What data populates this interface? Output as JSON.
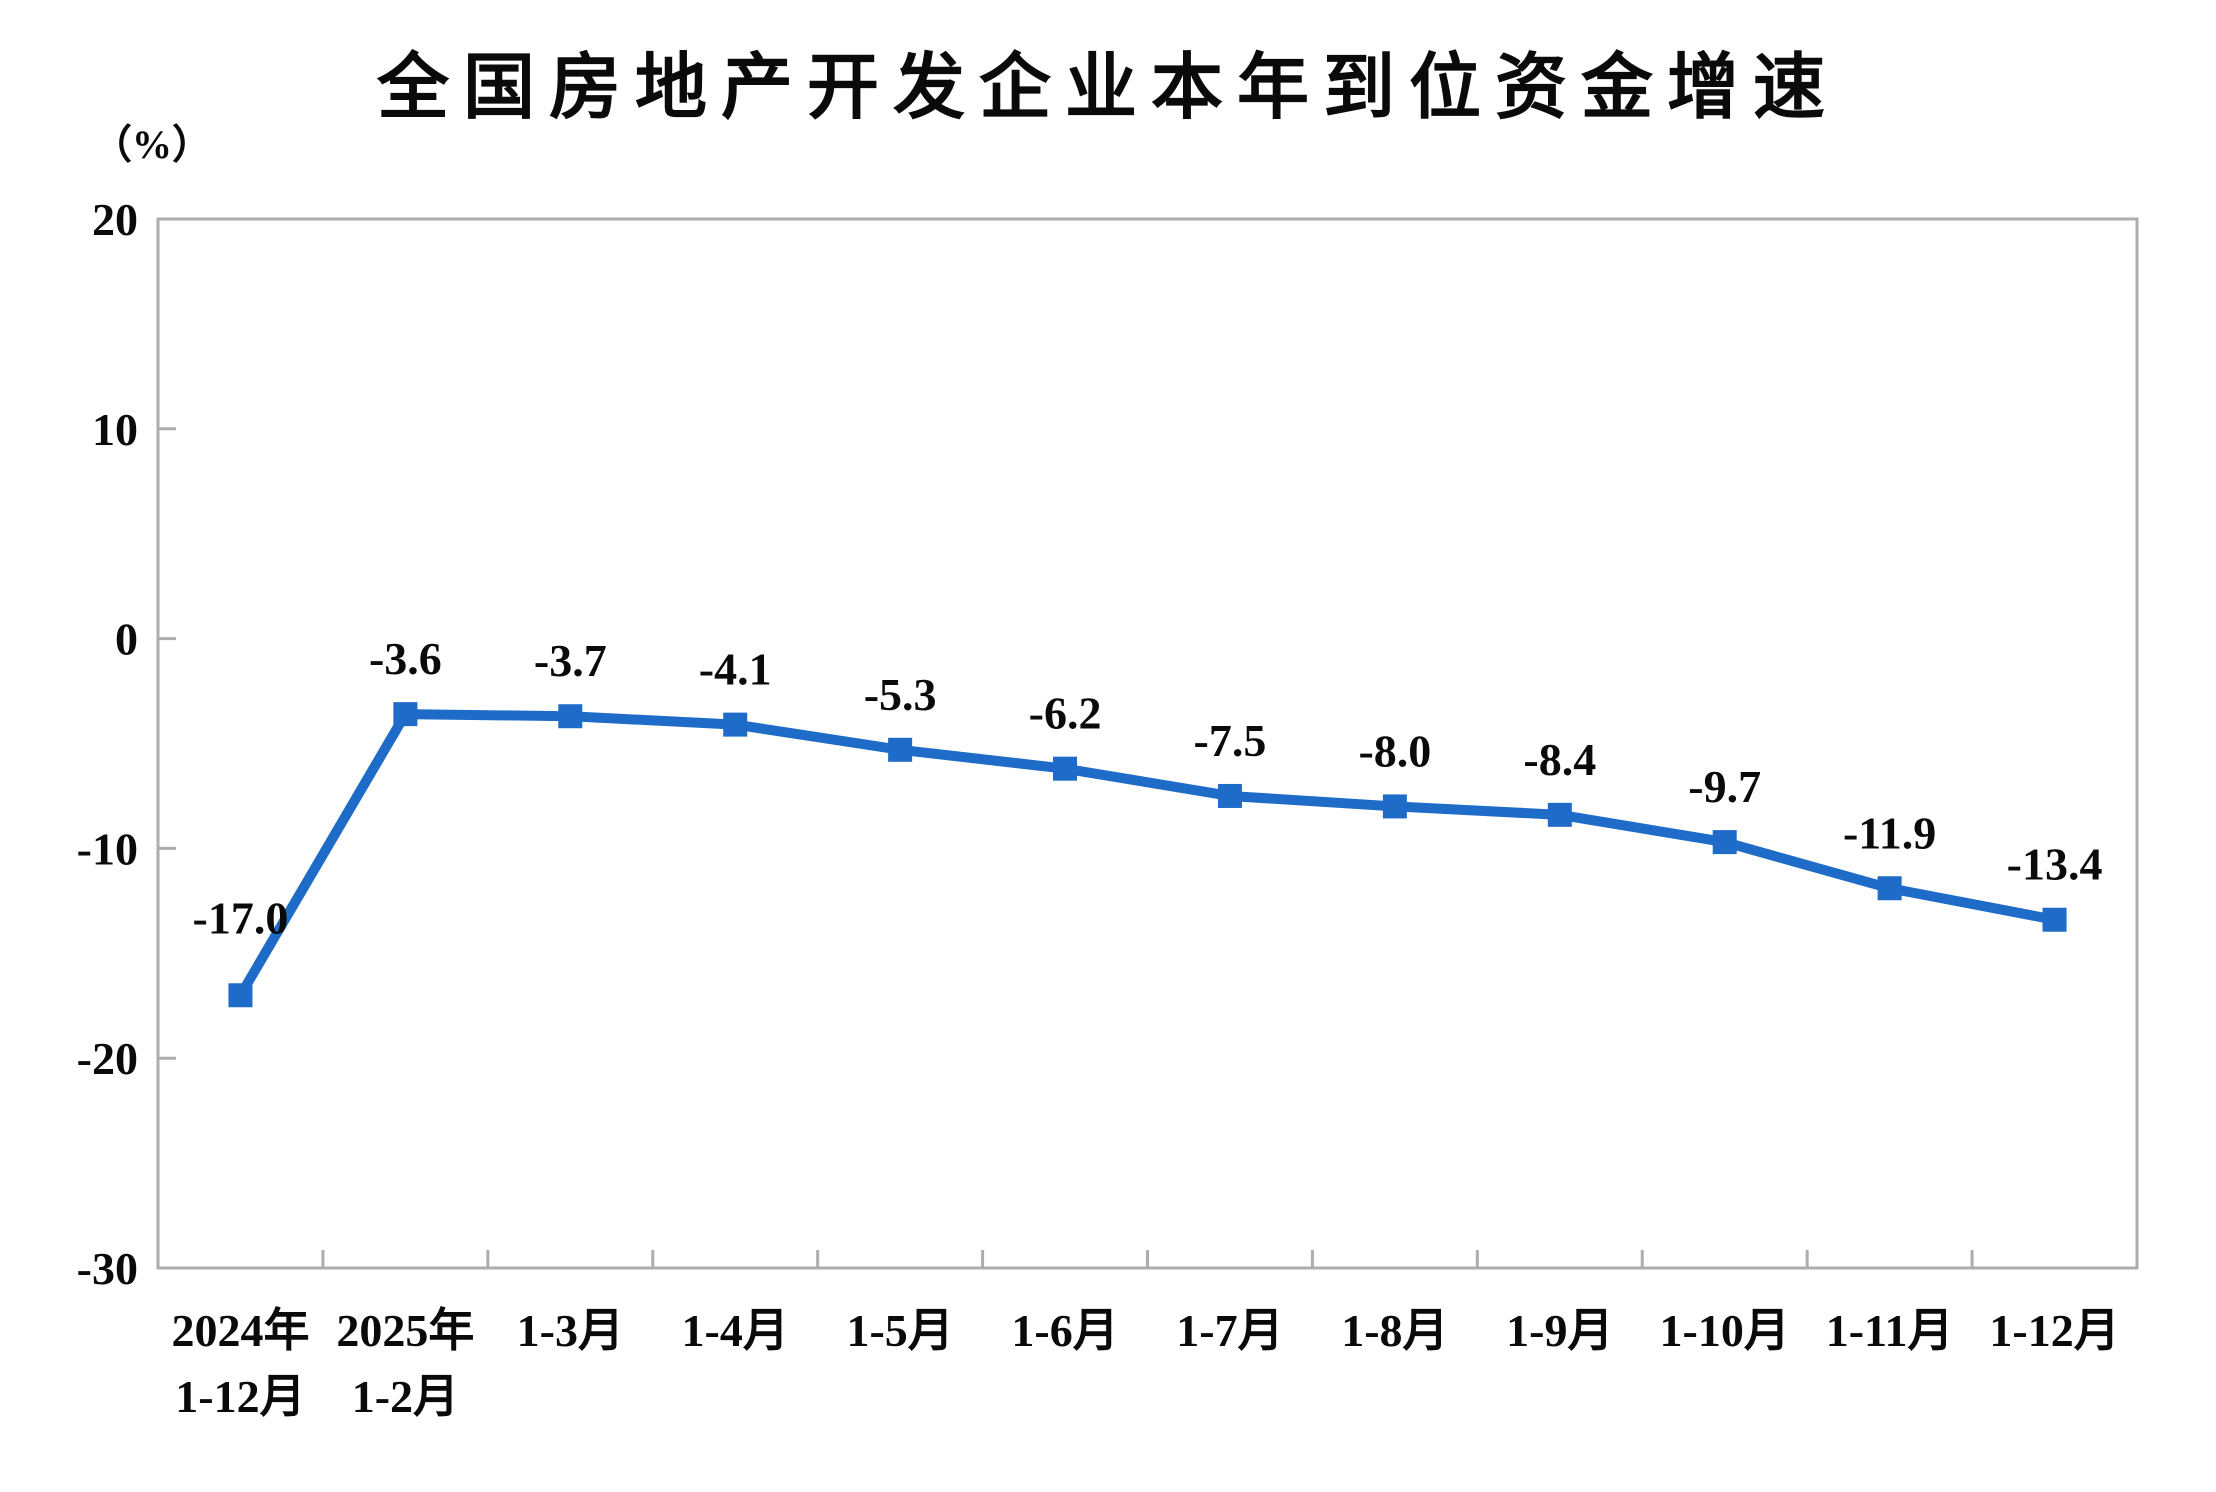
{
  "chart_data": {
    "type": "line",
    "title": "全国房地产开发企业本年到位资金增速",
    "ylabel": "（%）",
    "xlabel": "",
    "categories": [
      [
        "2024年",
        "1-12月"
      ],
      [
        "2025年",
        "1-2月"
      ],
      [
        "1-3月"
      ],
      [
        "1-4月"
      ],
      [
        "1-5月"
      ],
      [
        "1-6月"
      ],
      [
        "1-7月"
      ],
      [
        "1-8月"
      ],
      [
        "1-9月"
      ],
      [
        "1-10月"
      ],
      [
        "1-11月"
      ],
      [
        "1-12月"
      ]
    ],
    "series": [
      {
        "name": "本年到位资金增速",
        "values": [
          -17.0,
          -3.6,
          -3.7,
          -4.1,
          -5.3,
          -6.2,
          -7.5,
          -8.0,
          -8.4,
          -9.7,
          -11.9,
          -13.4
        ]
      }
    ],
    "data_labels": [
      "-17.0",
      "-3.6",
      "-3.7",
      "-4.1",
      "-5.3",
      "-6.2",
      "-7.5",
      "-8.0",
      "-8.4",
      "-9.7",
      "-11.9",
      "-13.4"
    ],
    "ylim": [
      -30,
      20
    ],
    "yticks": [
      20,
      10,
      0,
      -10,
      -20,
      -30
    ],
    "grid": false,
    "legend_position": "none",
    "marker": "square",
    "colors": {
      "line": "#1E6BC8",
      "marker": "#1E6BC8",
      "axis": "#ADADAD",
      "text": "#0a0a0a",
      "background": "#ffffff"
    }
  }
}
